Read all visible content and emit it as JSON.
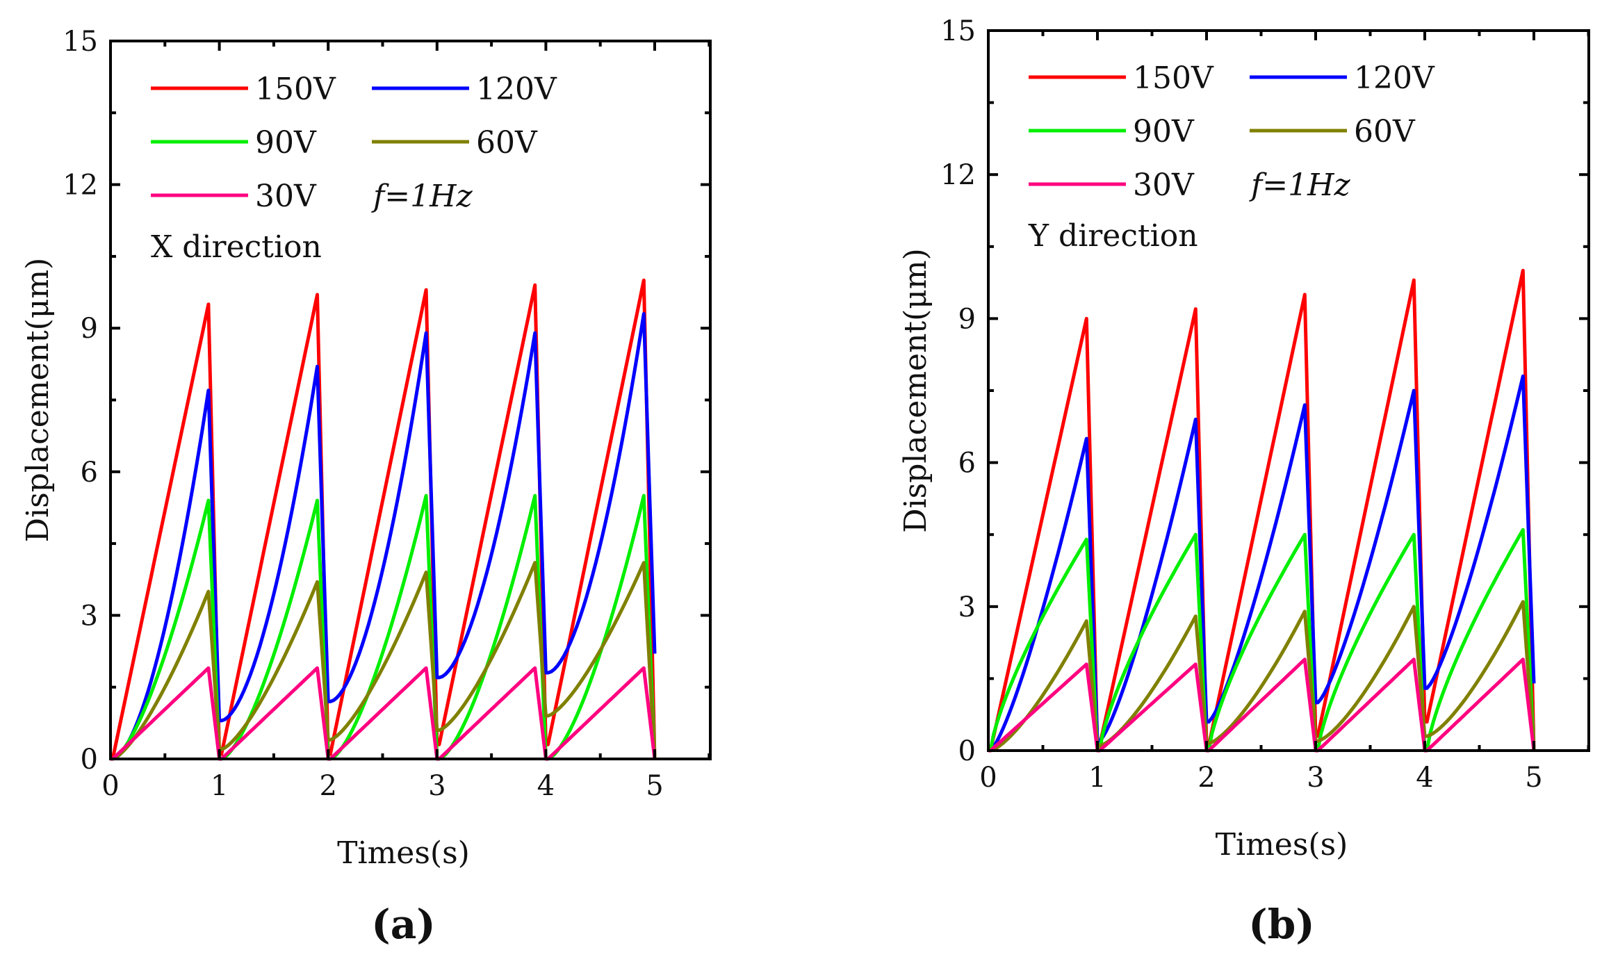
{
  "chart_data": [
    {
      "type": "line",
      "panel_label": "(a)",
      "annotation": "X direction",
      "frequency_note": "f=1Hz",
      "xlabel": "Times(s)",
      "ylabel": "Displacement(μm)",
      "xlim": [
        0,
        5.5
      ],
      "ylim": [
        0,
        15
      ],
      "xticks": [
        "0",
        "1",
        "2",
        "3",
        "4",
        "5"
      ],
      "yticks": [
        "0",
        "3",
        "6",
        "9",
        "12",
        "15"
      ],
      "legend_placement": "top-left",
      "period_s": 1,
      "series": [
        {
          "name": "150V",
          "color": "#ff0000",
          "shape": 1.0,
          "starts": [
            0,
            0.1,
            0.1,
            0.3,
            0.3
          ],
          "peaks": [
            9.5,
            9.7,
            9.8,
            9.9,
            10.0
          ]
        },
        {
          "name": "120V",
          "color": "#0000ff",
          "shape": 1.7,
          "starts": [
            0,
            0.8,
            1.2,
            1.7,
            1.8
          ],
          "peaks": [
            7.7,
            8.2,
            8.9,
            8.9,
            9.3
          ],
          "end": 2.2
        },
        {
          "name": "90V",
          "color": "#00ee00",
          "shape": 1.5,
          "starts": [
            0,
            0,
            0,
            0,
            0
          ],
          "peaks": [
            5.4,
            5.4,
            5.5,
            5.5,
            5.5
          ]
        },
        {
          "name": "60V",
          "color": "#808000",
          "shape": 1.4,
          "starts": [
            0,
            0.2,
            0.4,
            0.6,
            0.9
          ],
          "peaks": [
            3.5,
            3.7,
            3.9,
            4.1,
            4.1
          ]
        },
        {
          "name": "30V",
          "color": "#ff0080",
          "shape": 1.0,
          "starts": [
            0,
            0,
            0,
            0,
            0
          ],
          "peaks": [
            1.9,
            1.9,
            1.9,
            1.9,
            1.9
          ]
        }
      ]
    },
    {
      "type": "line",
      "panel_label": "(b)",
      "annotation": "Y direction",
      "frequency_note": "f=1Hz",
      "xlabel": "Times(s)",
      "ylabel": "Displacement(μm)",
      "xlim": [
        0,
        5.5
      ],
      "ylim": [
        0,
        15
      ],
      "xticks": [
        "0",
        "1",
        "2",
        "3",
        "4",
        "5"
      ],
      "yticks": [
        "0",
        "3",
        "6",
        "9",
        "12",
        "15"
      ],
      "legend_placement": "top-left",
      "period_s": 1,
      "series": [
        {
          "name": "150V",
          "color": "#ff0000",
          "shape": 1.0,
          "starts": [
            0,
            0.1,
            0.1,
            0.3,
            0.6
          ],
          "peaks": [
            9.0,
            9.2,
            9.5,
            9.8,
            10.0
          ]
        },
        {
          "name": "120V",
          "color": "#0000ff",
          "shape": 1.3,
          "starts": [
            0,
            0.2,
            0.6,
            1.0,
            1.3
          ],
          "peaks": [
            6.5,
            6.9,
            7.2,
            7.5,
            7.8
          ],
          "end": 1.4
        },
        {
          "name": "90V",
          "color": "#00ee00",
          "shape": 0.75,
          "starts": [
            0,
            0,
            0,
            0,
            0
          ],
          "peaks": [
            4.4,
            4.5,
            4.5,
            4.5,
            4.6
          ]
        },
        {
          "name": "60V",
          "color": "#808000",
          "shape": 1.4,
          "starts": [
            0,
            0.1,
            0.15,
            0.2,
            0.3
          ],
          "peaks": [
            2.7,
            2.8,
            2.9,
            3.0,
            3.1
          ]
        },
        {
          "name": "30V",
          "color": "#ff0080",
          "shape": 1.0,
          "starts": [
            0,
            0,
            0,
            0,
            0
          ],
          "peaks": [
            1.8,
            1.8,
            1.9,
            1.9,
            1.9
          ]
        }
      ]
    }
  ]
}
